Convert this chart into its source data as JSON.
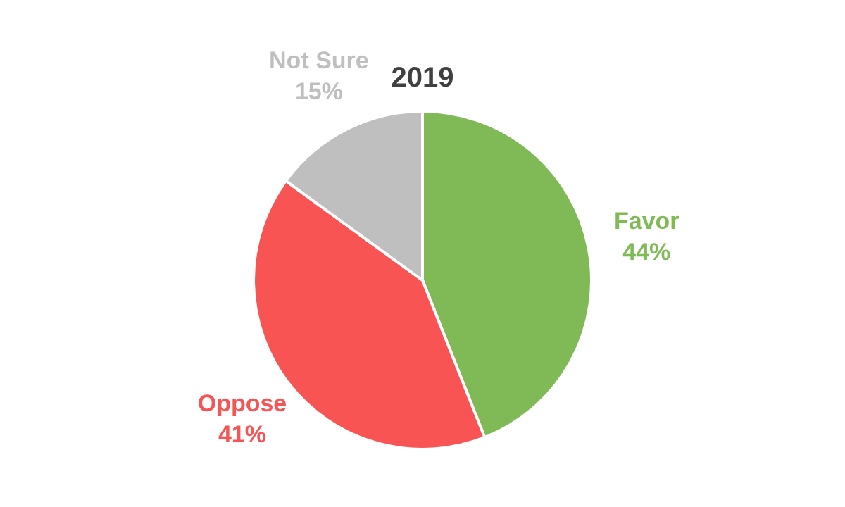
{
  "chart_data": {
    "type": "pie",
    "title": "2019",
    "categories": [
      "Favor",
      "Oppose",
      "Not Sure"
    ],
    "values": [
      44,
      41,
      15
    ],
    "value_labels": [
      "44%",
      "41%",
      "15%"
    ],
    "colors": [
      "#7fba57",
      "#f85454",
      "#bfbfbf"
    ],
    "legend": false
  }
}
